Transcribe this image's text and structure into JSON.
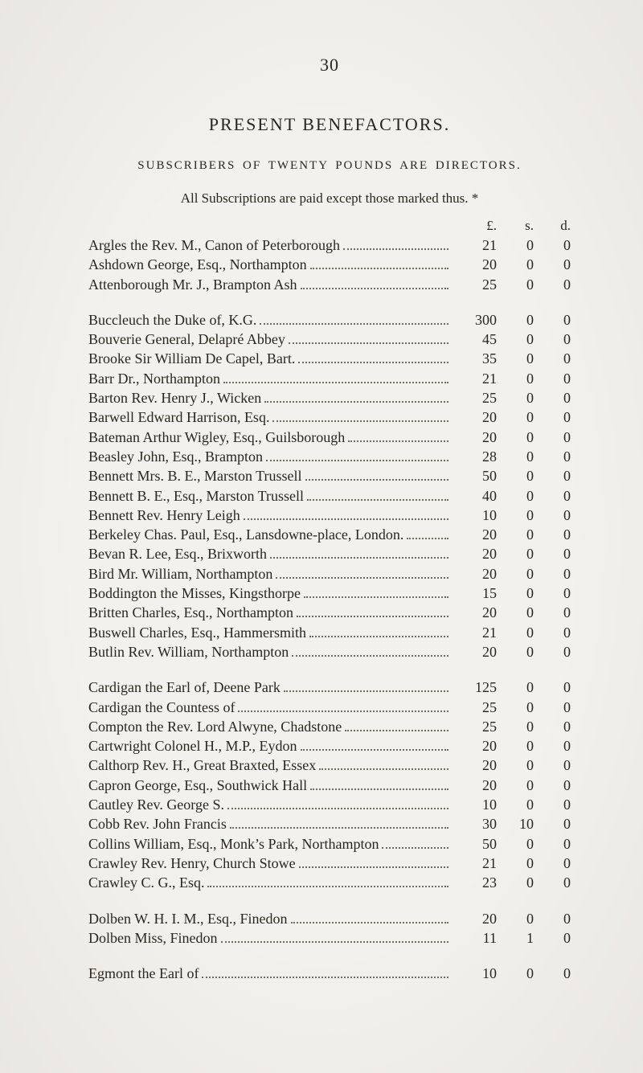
{
  "page_number": "30",
  "main_title": "PRESENT BENEFACTORS.",
  "subtitle": "SUBSCRIBERS OF TWENTY POUNDS ARE DIRECTORS.",
  "note": "All Subscriptions are paid except those marked thus. *",
  "column_headers": {
    "pounds": "£.",
    "shillings": "s.",
    "pence": "d."
  },
  "groups": [
    {
      "entries": [
        {
          "name": "Argles the Rev. M., Canon of Peterborough",
          "pounds": "21",
          "shillings": "0",
          "pence": "0"
        },
        {
          "name": "Ashdown George, Esq., Northampton",
          "pounds": "20",
          "shillings": "0",
          "pence": "0"
        },
        {
          "name": "Attenborough Mr. J., Brampton Ash",
          "pounds": "25",
          "shillings": "0",
          "pence": "0"
        }
      ]
    },
    {
      "entries": [
        {
          "name": "Buccleuch the Duke of, K.G.",
          "pounds": "300",
          "shillings": "0",
          "pence": "0"
        },
        {
          "name": "Bouverie General, Delapré Abbey",
          "pounds": "45",
          "shillings": "0",
          "pence": "0"
        },
        {
          "name": "Brooke Sir William De Capel, Bart.",
          "pounds": "35",
          "shillings": "0",
          "pence": "0"
        },
        {
          "name": "Barr Dr., Northampton",
          "pounds": "21",
          "shillings": "0",
          "pence": "0"
        },
        {
          "name": "Barton Rev. Henry J., Wicken",
          "pounds": "25",
          "shillings": "0",
          "pence": "0"
        },
        {
          "name": "Barwell Edward Harrison, Esq.",
          "pounds": "20",
          "shillings": "0",
          "pence": "0"
        },
        {
          "name": "Bateman Arthur Wigley, Esq., Guilsborough",
          "pounds": "20",
          "shillings": "0",
          "pence": "0"
        },
        {
          "name": "Beasley John, Esq., Brampton",
          "pounds": "28",
          "shillings": "0",
          "pence": "0"
        },
        {
          "name": "Bennett Mrs. B. E., Marston Trussell",
          "pounds": "50",
          "shillings": "0",
          "pence": "0"
        },
        {
          "name": "Bennett B. E., Esq., Marston Trussell",
          "pounds": "40",
          "shillings": "0",
          "pence": "0"
        },
        {
          "name": "Bennett Rev. Henry Leigh",
          "pounds": "10",
          "shillings": "0",
          "pence": "0"
        },
        {
          "name": "Berkeley Chas. Paul, Esq., Lansdowne-place, London.",
          "pounds": "20",
          "shillings": "0",
          "pence": "0"
        },
        {
          "name": "Bevan R. Lee, Esq., Brixworth",
          "pounds": "20",
          "shillings": "0",
          "pence": "0"
        },
        {
          "name": "Bird Mr. William, Northampton",
          "pounds": "20",
          "shillings": "0",
          "pence": "0"
        },
        {
          "name": "Boddington the Misses, Kingsthorpe",
          "pounds": "15",
          "shillings": "0",
          "pence": "0"
        },
        {
          "name": "Britten Charles, Esq., Northampton",
          "pounds": "20",
          "shillings": "0",
          "pence": "0"
        },
        {
          "name": "Buswell Charles, Esq., Hammersmith",
          "pounds": "21",
          "shillings": "0",
          "pence": "0"
        },
        {
          "name": "Butlin Rev. William, Northampton",
          "pounds": "20",
          "shillings": "0",
          "pence": "0"
        }
      ]
    },
    {
      "entries": [
        {
          "name": "Cardigan the Earl of, Deene Park",
          "pounds": "125",
          "shillings": "0",
          "pence": "0"
        },
        {
          "name": "Cardigan the Countess of",
          "pounds": "25",
          "shillings": "0",
          "pence": "0"
        },
        {
          "name": "Compton the Rev. Lord Alwyne, Chadstone",
          "pounds": "25",
          "shillings": "0",
          "pence": "0"
        },
        {
          "name": "Cartwright Colonel H., M.P., Eydon",
          "pounds": "20",
          "shillings": "0",
          "pence": "0"
        },
        {
          "name": "Calthorp Rev. H., Great Braxted, Essex",
          "pounds": "20",
          "shillings": "0",
          "pence": "0"
        },
        {
          "name": "Capron George, Esq., Southwick Hall",
          "pounds": "20",
          "shillings": "0",
          "pence": "0"
        },
        {
          "name": "Cautley Rev. George S.",
          "pounds": "10",
          "shillings": "0",
          "pence": "0"
        },
        {
          "name": "Cobb Rev. John Francis",
          "pounds": "30",
          "shillings": "10",
          "pence": "0"
        },
        {
          "name": "Collins William, Esq., Monk’s Park, Northampton",
          "pounds": "50",
          "shillings": "0",
          "pence": "0"
        },
        {
          "name": "Crawley Rev. Henry, Church Stowe",
          "pounds": "21",
          "shillings": "0",
          "pence": "0"
        },
        {
          "name": "Crawley C. G., Esq.",
          "pounds": "23",
          "shillings": "0",
          "pence": "0"
        }
      ]
    },
    {
      "entries": [
        {
          "name": "Dolben W. H. I. M., Esq., Finedon",
          "pounds": "20",
          "shillings": "0",
          "pence": "0"
        },
        {
          "name": "Dolben Miss, Finedon",
          "pounds": "11",
          "shillings": "1",
          "pence": "0"
        }
      ]
    },
    {
      "entries": [
        {
          "name": "Egmont the Earl of",
          "pounds": "10",
          "shillings": "0",
          "pence": "0"
        }
      ]
    }
  ]
}
